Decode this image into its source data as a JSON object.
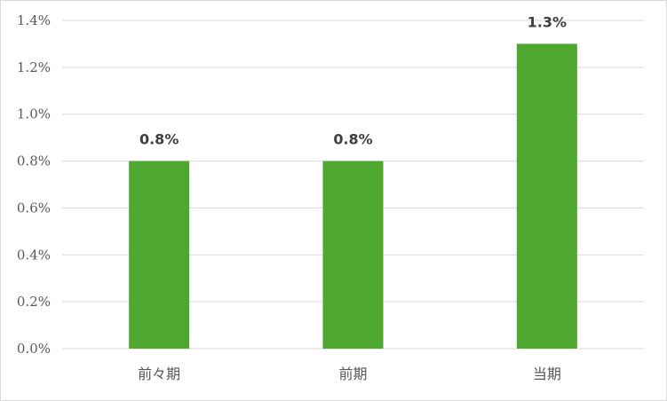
{
  "chart_data": {
    "type": "bar",
    "categories": [
      "前々期",
      "前期",
      "当期"
    ],
    "values": [
      0.8,
      0.8,
      1.3
    ],
    "data_labels": [
      "0.8%",
      "0.8%",
      "1.3%"
    ],
    "title": "",
    "xlabel": "",
    "ylabel": "",
    "ylim": [
      0,
      1.4
    ],
    "y_ticks": [
      "0.0%",
      "0.2%",
      "0.4%",
      "0.6%",
      "0.8%",
      "1.0%",
      "1.2%",
      "1.4%"
    ],
    "grid": true,
    "legend": "none",
    "bar_color": "#4ea72e",
    "grid_color": "#d9d9d9"
  }
}
